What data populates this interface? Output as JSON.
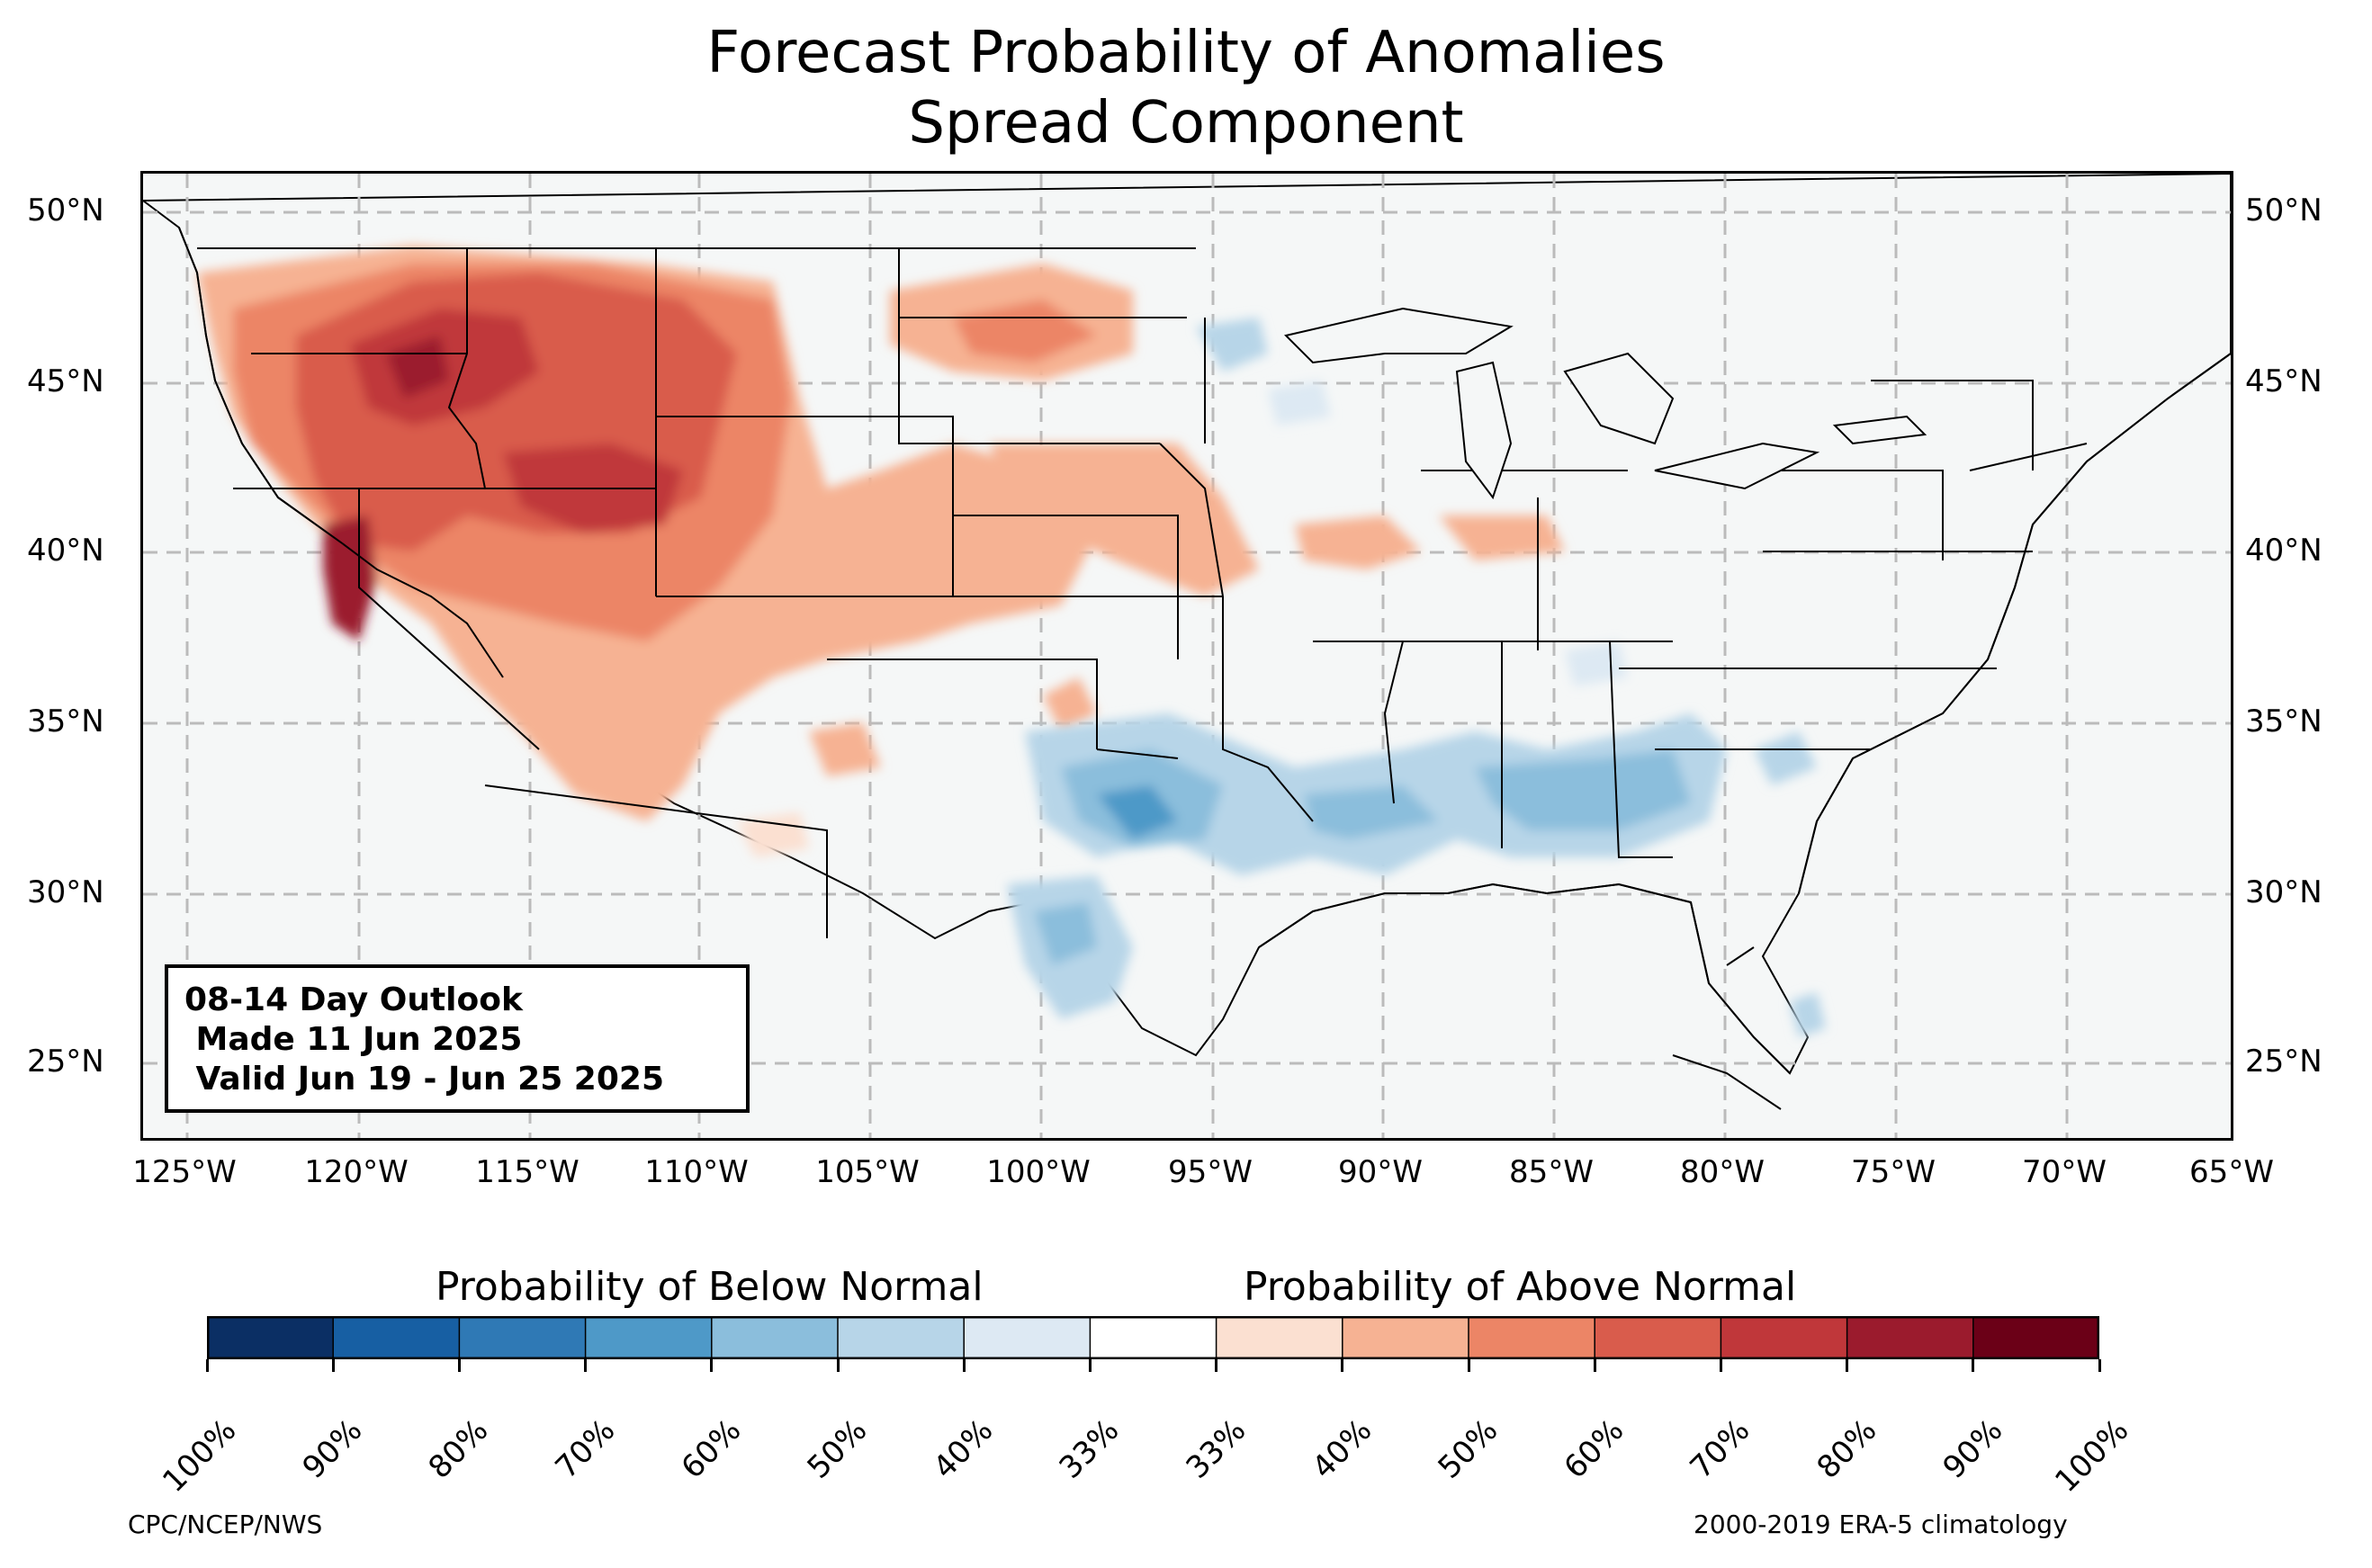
{
  "title_line1": "Forecast Probability of Anomalies",
  "title_line2": "Spread Component",
  "map": {
    "lat_labels": [
      "50°N",
      "45°N",
      "40°N",
      "35°N",
      "30°N",
      "25°N"
    ],
    "lon_labels": [
      "125°W",
      "120°W",
      "115°W",
      "110°W",
      "105°W",
      "100°W",
      "95°W",
      "90°W",
      "85°W",
      "80°W",
      "75°W",
      "70°W",
      "65°W"
    ],
    "colors": {
      "ocean": "#f5f7f7",
      "above": [
        "#fbe0d1",
        "#f6b293",
        "#ec8566",
        "#d95c4c",
        "#c0373a",
        "#9b1b2d",
        "#6b0017"
      ],
      "below": [
        "#dde9f3",
        "#b7d5e8",
        "#8bbedc",
        "#4e99c8",
        "#2f79b5",
        "#175fa3",
        "#0b2f64"
      ]
    }
  },
  "info_box": {
    "line1": "08-14 Day Outlook",
    "line2": " Made 11 Jun 2025",
    "line3": " Valid Jun 19 - Jun 25 2025"
  },
  "colorbar": {
    "below_label": "Probability of Below Normal",
    "above_label": "Probability of Above Normal",
    "tick_labels": [
      "100%",
      "90%",
      "80%",
      "70%",
      "60%",
      "50%",
      "40%",
      "33%",
      "33%",
      "40%",
      "50%",
      "60%",
      "70%",
      "80%",
      "90%",
      "100%"
    ],
    "segment_colors": [
      "#0b2f64",
      "#175fa3",
      "#2f79b5",
      "#4e99c8",
      "#8bbedc",
      "#b7d5e8",
      "#dde9f3",
      "#ffffff",
      "#fbe0d1",
      "#f6b293",
      "#ec8566",
      "#d95c4c",
      "#c0373a",
      "#9b1b2d",
      "#6b0017"
    ]
  },
  "footer": {
    "left": "CPC/NCEP/NWS",
    "right": "2000-2019 ERA-5 climatology"
  }
}
